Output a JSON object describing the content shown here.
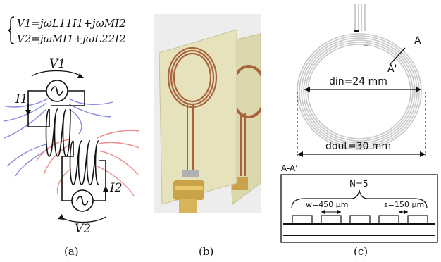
{
  "panel_a": {
    "equation_1": "V1=jωL11I1+jωMI2",
    "equation_2": "V2=jωMI1+jωL22I2",
    "v1_label": "V1",
    "v2_label": "V2",
    "i1_label": "I1",
    "i2_label": "I2",
    "caption": "(a)"
  },
  "panel_b": {
    "caption": "(b)"
  },
  "panel_c": {
    "section_marker_a": "A",
    "section_marker_a_prime": "A'",
    "din_label": "din=24 mm",
    "dout_label": "dout=30 mm",
    "section_title": "A-A'",
    "n_label": "N=5",
    "w_label": "w=450 μm",
    "s_label": "s=150 μm",
    "caption": "(c)"
  },
  "colors": {
    "field_blue": "#8a8ae0",
    "field_red": "#ee8a8a",
    "trace_gray": "#c8c8c8",
    "board_green": "#e6e2bc",
    "copper": "#a8643c"
  }
}
